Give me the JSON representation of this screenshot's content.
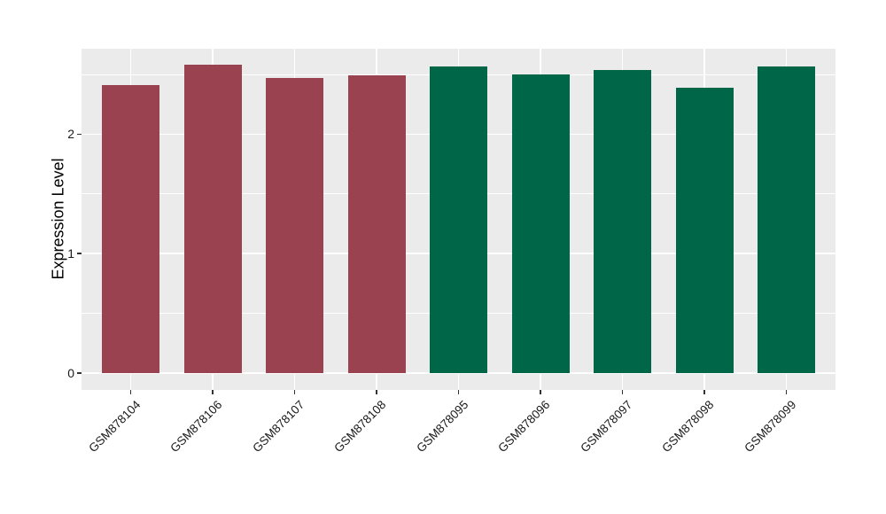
{
  "chart_data": {
    "type": "bar",
    "title": "",
    "xlabel": "",
    "ylabel": "Expression Level",
    "categories": [
      "GSM878104",
      "GSM878106",
      "GSM878107",
      "GSM878108",
      "GSM878095",
      "GSM878096",
      "GSM878097",
      "GSM878098",
      "GSM878099"
    ],
    "values": [
      2.41,
      2.58,
      2.47,
      2.49,
      2.57,
      2.5,
      2.54,
      2.39,
      2.57
    ],
    "bar_colors": [
      "#9B4250",
      "#9B4250",
      "#9B4250",
      "#9B4250",
      "#006648",
      "#006648",
      "#006648",
      "#006648",
      "#006648"
    ],
    "groups": [
      {
        "name": "maroon-group",
        "color": "#9B4250",
        "categories": [
          "GSM878104",
          "GSM878106",
          "GSM878107",
          "GSM878108"
        ]
      },
      {
        "name": "green-group",
        "color": "#006648",
        "categories": [
          "GSM878095",
          "GSM878096",
          "GSM878097",
          "GSM878098",
          "GSM878099"
        ]
      }
    ],
    "yticks": [
      0,
      1,
      2
    ],
    "yticks_minor": [
      0.5,
      1.5,
      2.5
    ],
    "ylim": [
      -0.13,
      2.72
    ],
    "grid": true,
    "legend": "none",
    "x_tick_rotation": 45
  },
  "style": {
    "outer_bg": "#FFFFFF",
    "panel_bg": "#EBEBEB",
    "grid_color": "#FFFFFF",
    "axis_text_color": "#1A1A1A",
    "tick_mark_color": "#333333"
  }
}
